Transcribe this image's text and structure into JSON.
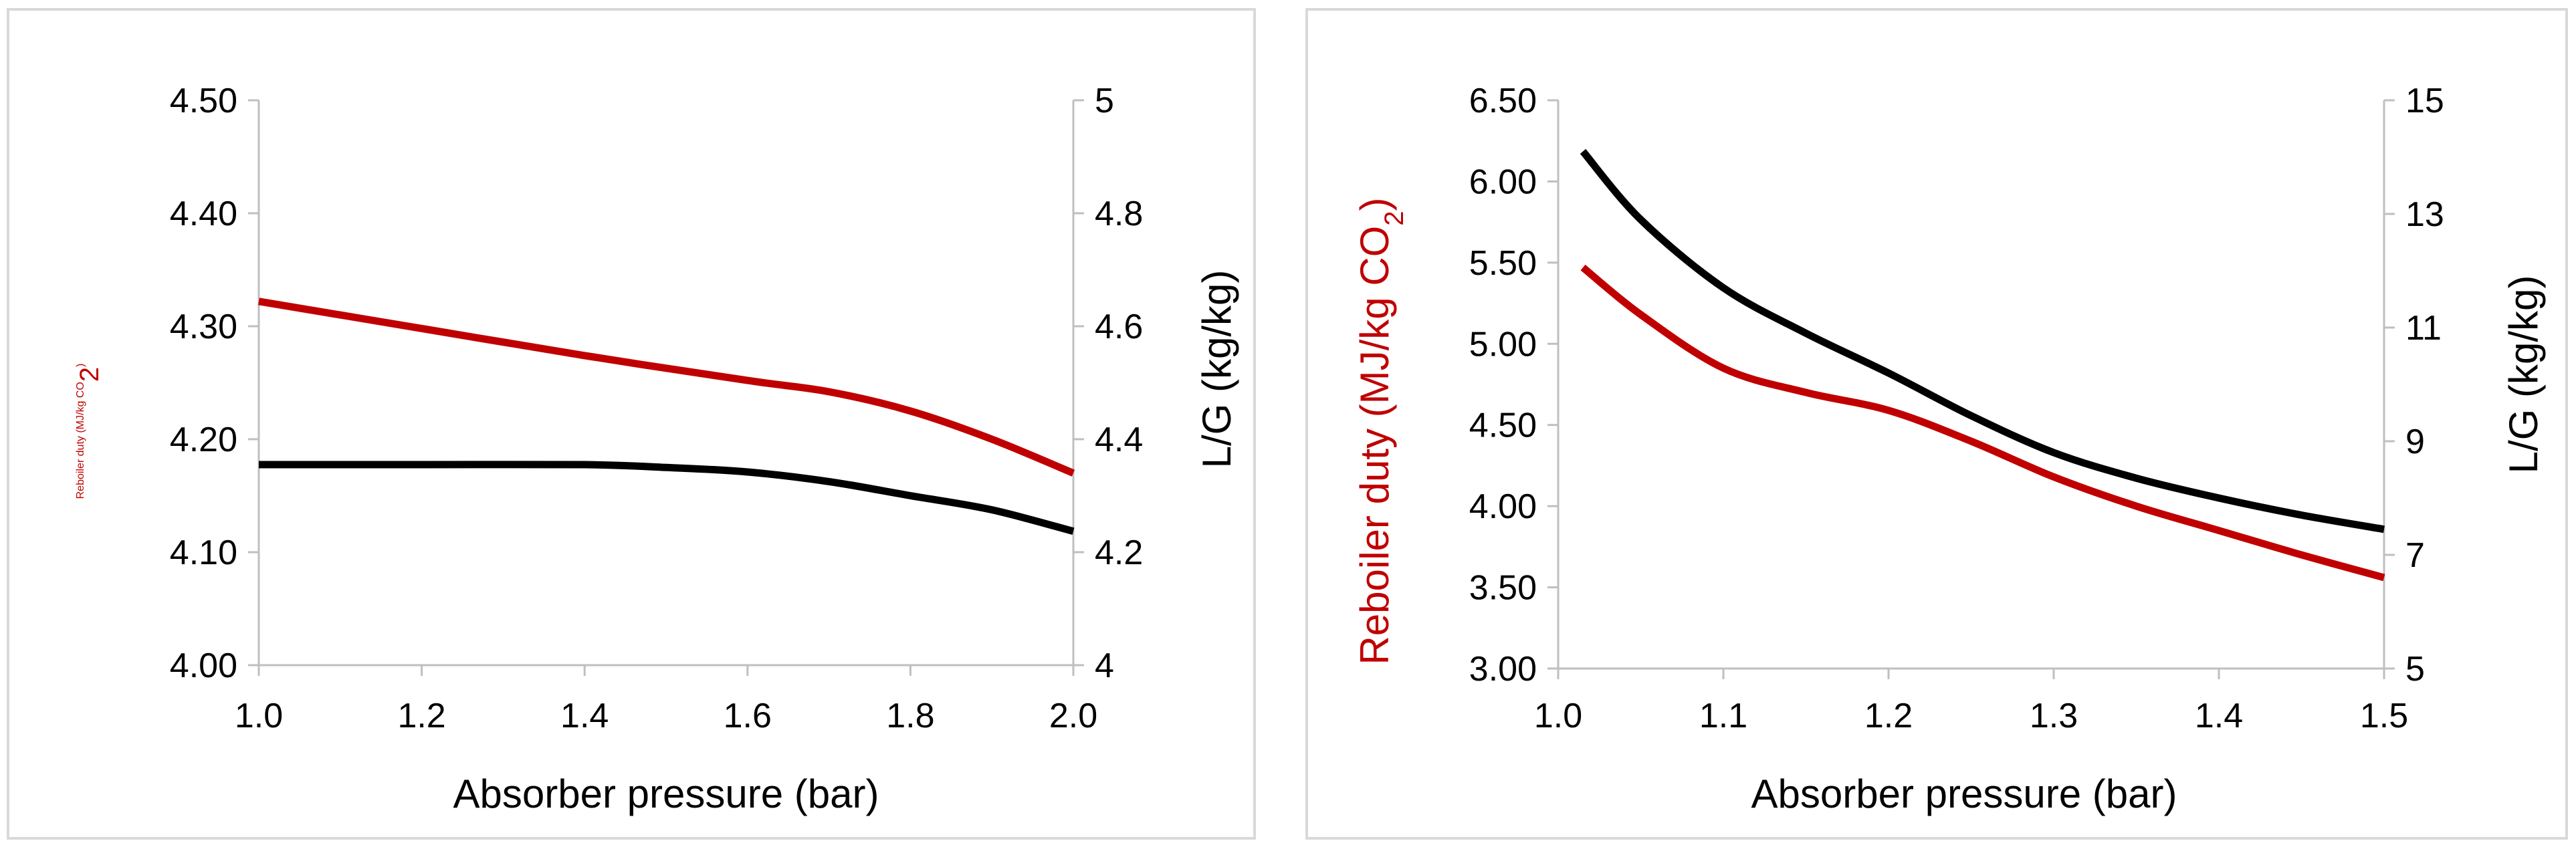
{
  "colors": {
    "reboiler": "#c00000",
    "lg": "#000000",
    "axis": "#bfbfbf",
    "border": "#d9d9d9",
    "text": "#000000"
  },
  "chart_data": [
    {
      "type": "line",
      "xlabel": "Absorber pressure (bar)",
      "ylabel_left": {
        "text": "Reboiler duty (MJ/kg CO",
        "subscript": "2",
        "close": ")"
      },
      "ylabel_right": "L/G (kg/kg)",
      "xlim": [
        1.0,
        2.0
      ],
      "ylim_left": [
        4.0,
        4.5
      ],
      "ylim_right": [
        4.0,
        5.0
      ],
      "x_ticks": [
        "1.0",
        "1.2",
        "1.4",
        "1.6",
        "1.8",
        "2.0"
      ],
      "y_left_ticks": [
        "4.00",
        "4.10",
        "4.20",
        "4.30",
        "4.40",
        "4.50"
      ],
      "y_right_ticks": [
        "4",
        "4.2",
        "4.4",
        "4.6",
        "4.8",
        "5"
      ],
      "grid": false,
      "series": [
        {
          "name": "Reboiler duty",
          "axis": "left",
          "x": [
            1.0,
            1.2,
            1.4,
            1.6,
            1.7,
            1.8,
            1.9,
            2.0
          ],
          "values": [
            4.322,
            4.298,
            4.274,
            4.252,
            4.242,
            4.225,
            4.2,
            4.17
          ]
        },
        {
          "name": "L/G",
          "axis": "right",
          "x": [
            1.0,
            1.2,
            1.4,
            1.5,
            1.6,
            1.7,
            1.8,
            1.9,
            2.0
          ],
          "values": [
            4.355,
            4.355,
            4.355,
            4.35,
            4.342,
            4.325,
            4.3,
            4.275,
            4.237
          ]
        }
      ]
    },
    {
      "type": "line",
      "xlabel": "Absorber pressure (bar)",
      "ylabel_left": {
        "text": "Reboiler duty (MJ/kg CO",
        "subscript": "2",
        "close": ")"
      },
      "ylabel_right": "L/G (kg/kg)",
      "xlim": [
        1.0,
        1.5
      ],
      "ylim_left": [
        3.0,
        6.5
      ],
      "ylim_right": [
        5,
        15
      ],
      "x_ticks": [
        "1.0",
        "1.1",
        "1.2",
        "1.3",
        "1.4",
        "1.5"
      ],
      "y_left_ticks": [
        "3.00",
        "3.50",
        "4.00",
        "4.50",
        "5.00",
        "5.50",
        "6.00",
        "6.50"
      ],
      "y_right_ticks": [
        "5",
        "7",
        "9",
        "11",
        "13",
        "15"
      ],
      "grid": false,
      "series": [
        {
          "name": "Reboiler duty",
          "axis": "left",
          "x": [
            1.015,
            1.05,
            1.1,
            1.15,
            1.2,
            1.25,
            1.3,
            1.35,
            1.4,
            1.45,
            1.5
          ],
          "values": [
            5.47,
            5.18,
            4.85,
            4.7,
            4.59,
            4.4,
            4.18,
            4.0,
            3.85,
            3.7,
            3.56
          ]
        },
        {
          "name": "L/G",
          "axis": "right",
          "x": [
            1.015,
            1.05,
            1.1,
            1.15,
            1.2,
            1.25,
            1.3,
            1.35,
            1.4,
            1.45,
            1.5
          ],
          "values": [
            14.1,
            12.9,
            11.7,
            10.9,
            10.2,
            9.45,
            8.8,
            8.35,
            8.0,
            7.7,
            7.45
          ]
        }
      ]
    }
  ]
}
